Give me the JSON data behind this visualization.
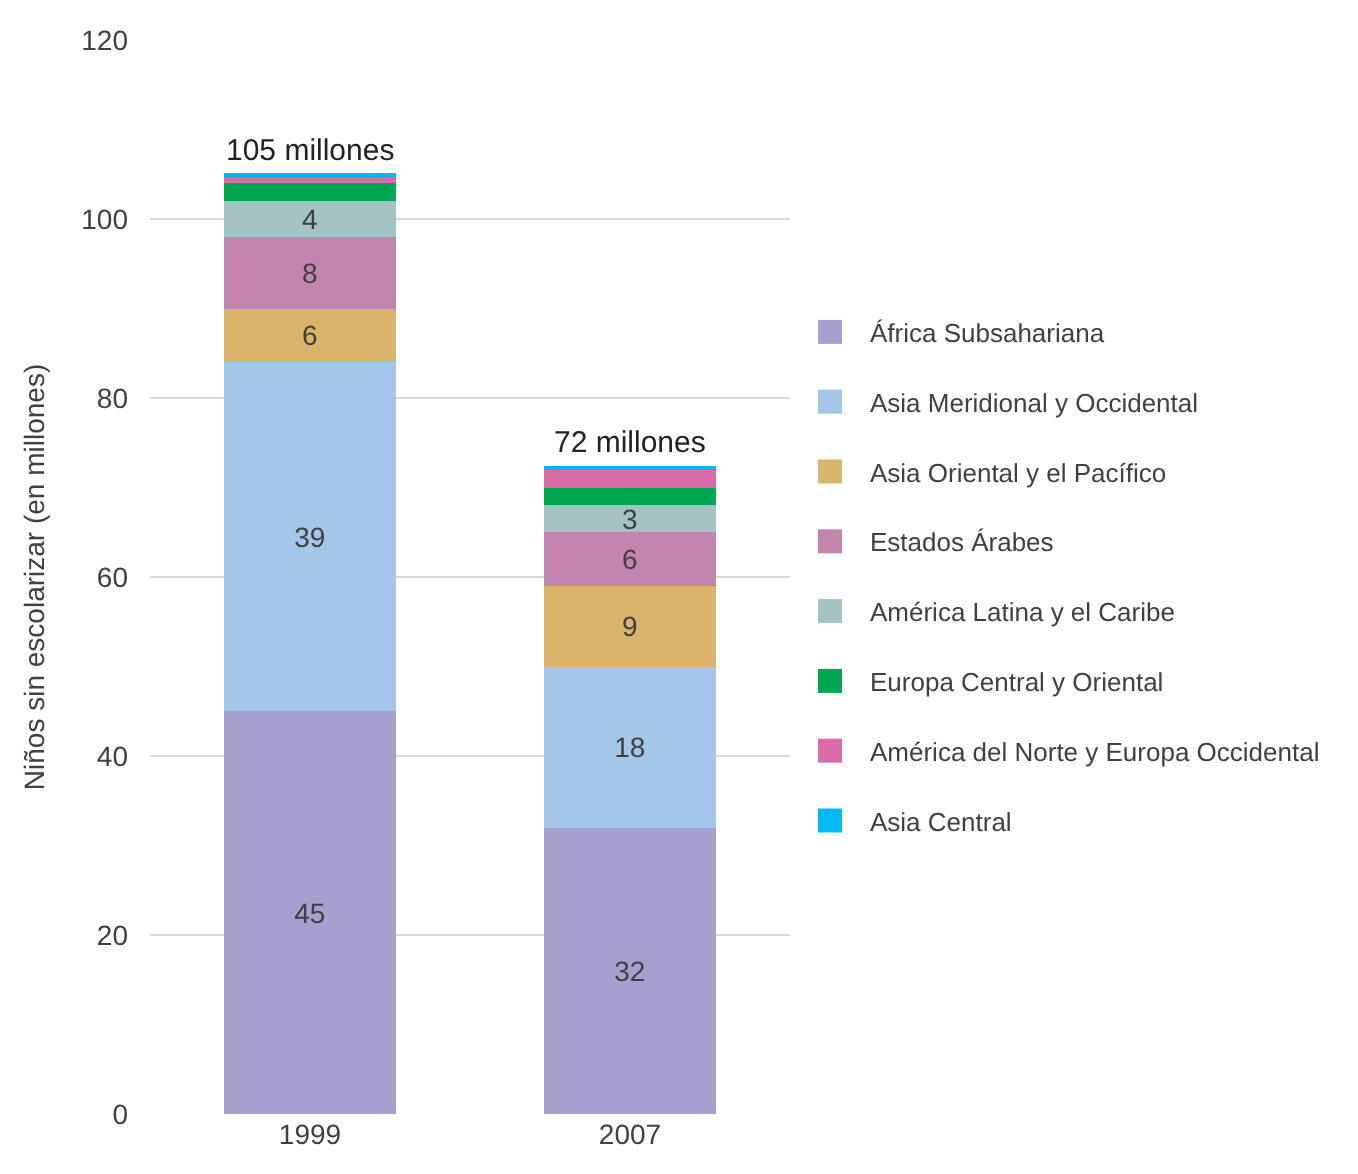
{
  "chart_data": {
    "type": "bar",
    "stacked": true,
    "categories": [
      "1999",
      "2007"
    ],
    "ylabel": "Niños sin escolarizar (en millones)",
    "ylim": [
      0,
      120
    ],
    "yticks": [
      0,
      20,
      40,
      60,
      80,
      100,
      120
    ],
    "grid": "y",
    "legend": "right",
    "totals": [
      "105 millones",
      "72 millones"
    ],
    "series": [
      {
        "name": "África Subsahariana",
        "color": "#a6a0cf",
        "values": [
          45,
          32
        ],
        "value_labels": [
          "45",
          "32"
        ]
      },
      {
        "name": "Asia Meridional y Occidental",
        "color": "#a4c6e8",
        "values": [
          39,
          18
        ],
        "value_labels": [
          "39",
          "18"
        ]
      },
      {
        "name": "Asia Oriental y el Pacífico",
        "color": "#d9b46a",
        "values": [
          6,
          9
        ],
        "value_labels": [
          "6",
          "9"
        ]
      },
      {
        "name": "Estados Árabes",
        "color": "#c285b0",
        "values": [
          8,
          6
        ],
        "value_labels": [
          "8",
          "6"
        ]
      },
      {
        "name": "América Latina y el Caribe",
        "color": "#a3c4c2",
        "values": [
          4,
          3
        ],
        "value_labels": [
          "4",
          "3"
        ]
      },
      {
        "name": "Europa Central y Oriental",
        "color": "#00a650",
        "values": [
          2,
          2
        ]
      },
      {
        "name": "América del Norte y Europa Occidental",
        "color": "#d96ca8",
        "values": [
          0.7,
          2
        ]
      },
      {
        "name": "Asia Central",
        "color": "#00b9f2",
        "values": [
          0.4,
          0.3
        ]
      }
    ]
  }
}
